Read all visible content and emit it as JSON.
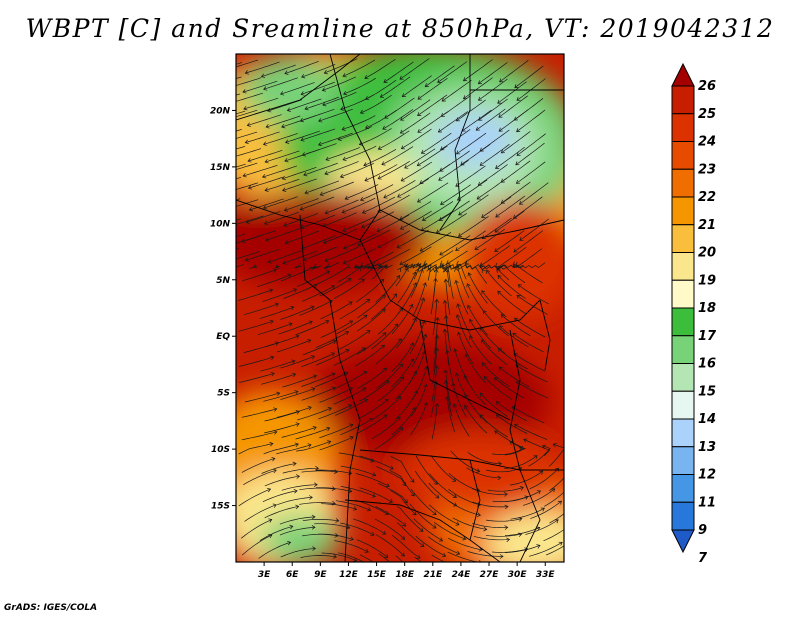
{
  "title": "WBPT [C] and Sreamline at 850hPa, VT: 2019042312",
  "credit": "GrADS: IGES/COLA",
  "map": {
    "lon_range": [
      0,
      35
    ],
    "lat_range": [
      -20,
      25
    ],
    "lon_ticks": [
      "3E",
      "6E",
      "9E",
      "12E",
      "15E",
      "18E",
      "21E",
      "24E",
      "27E",
      "30E",
      "33E"
    ],
    "lat_ticks": [
      "20N",
      "15N",
      "10N",
      "5N",
      "EQ",
      "5S",
      "10S",
      "15S"
    ]
  },
  "colorbar": {
    "labels": [
      "26",
      "25",
      "24",
      "23",
      "22",
      "21",
      "20",
      "19",
      "18",
      "17",
      "16",
      "15",
      "14",
      "13",
      "12",
      "11",
      "9",
      "7"
    ],
    "colors": [
      "#a50000",
      "#c81e00",
      "#dc3200",
      "#e64b00",
      "#f06e00",
      "#f59600",
      "#f8be3c",
      "#fae68c",
      "#fffac8",
      "#3cbe3c",
      "#78d278",
      "#b4e6b4",
      "#e6f6f0",
      "#aad2fa",
      "#78b4f0",
      "#4696e6",
      "#2878dc",
      "#1e5ac8"
    ]
  }
}
